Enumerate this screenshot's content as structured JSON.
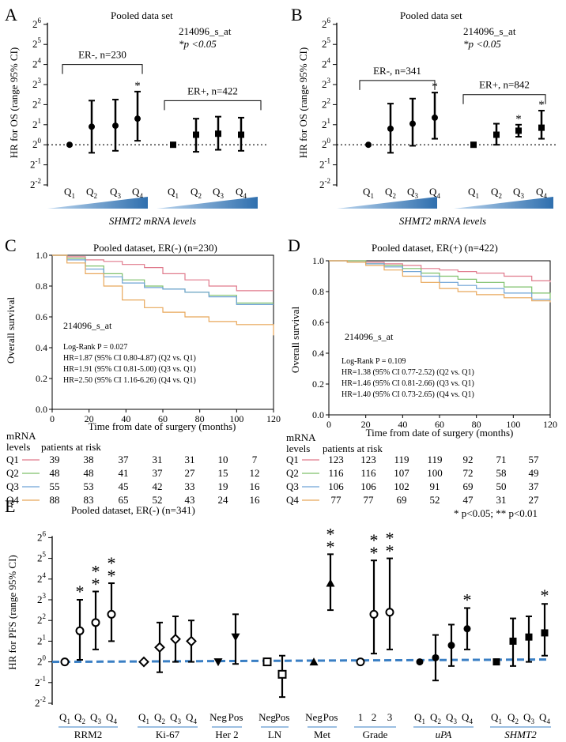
{
  "chart_data": [
    {
      "panel": "A",
      "type": "forest",
      "title": "Pooled data set",
      "probe": "214096_s_at",
      "pnote": "*p <0.05",
      "ylabel": "HR for OS (range 95% CI)",
      "xlabel": "SHMT2 mRNA levels",
      "ylim": [
        -2,
        6
      ],
      "yticks": [
        -2,
        -1,
        0,
        1,
        2,
        3,
        4,
        5,
        6
      ],
      "groups": [
        {
          "label": "ER-, n=230",
          "categories": [
            "Q1",
            "Q2",
            "Q3",
            "Q4"
          ],
          "marker": "circle",
          "points": [
            {
              "cat": "Q1",
              "value": 0,
              "lo": 0,
              "hi": 0,
              "sig": ""
            },
            {
              "cat": "Q2",
              "value": 0.9,
              "lo": -0.4,
              "hi": 2.2,
              "sig": ""
            },
            {
              "cat": "Q3",
              "value": 0.95,
              "lo": -0.3,
              "hi": 2.25,
              "sig": ""
            },
            {
              "cat": "Q4",
              "value": 1.3,
              "lo": 0.2,
              "hi": 2.65,
              "sig": "*"
            }
          ]
        },
        {
          "label": "ER+, n=422",
          "categories": [
            "Q1",
            "Q2",
            "Q3",
            "Q4"
          ],
          "marker": "square",
          "points": [
            {
              "cat": "Q1",
              "value": 0,
              "lo": 0,
              "hi": 0,
              "sig": ""
            },
            {
              "cat": "Q2",
              "value": 0.5,
              "lo": -0.35,
              "hi": 1.3,
              "sig": ""
            },
            {
              "cat": "Q3",
              "value": 0.55,
              "lo": -0.25,
              "hi": 1.4,
              "sig": ""
            },
            {
              "cat": "Q4",
              "value": 0.5,
              "lo": -0.3,
              "hi": 1.35,
              "sig": ""
            }
          ]
        }
      ]
    },
    {
      "panel": "B",
      "type": "forest",
      "title": "Pooled data set",
      "probe": "214096_s_at",
      "pnote": "*p <0.05",
      "ylabel": "HR for OS (range 95% CI)",
      "xlabel": "SHMT2 mRNA levels",
      "ylim": [
        -2,
        6
      ],
      "yticks": [
        -2,
        -1,
        0,
        1,
        2,
        3,
        4,
        5,
        6
      ],
      "groups": [
        {
          "label": "ER-, n=341",
          "categories": [
            "Q1",
            "Q2",
            "Q3",
            "Q4"
          ],
          "marker": "circle",
          "points": [
            {
              "cat": "Q1",
              "value": 0,
              "lo": 0,
              "hi": 0,
              "sig": ""
            },
            {
              "cat": "Q2",
              "value": 0.8,
              "lo": -0.4,
              "hi": 2.05,
              "sig": ""
            },
            {
              "cat": "Q3",
              "value": 1.05,
              "lo": -0.05,
              "hi": 2.3,
              "sig": ""
            },
            {
              "cat": "Q4",
              "value": 1.35,
              "lo": 0.3,
              "hi": 2.6,
              "sig": "*"
            }
          ]
        },
        {
          "label": "ER+, n=842",
          "categories": [
            "Q1",
            "Q2",
            "Q3",
            "Q4"
          ],
          "marker": "square",
          "points": [
            {
              "cat": "Q1",
              "value": 0,
              "lo": 0,
              "hi": 0,
              "sig": ""
            },
            {
              "cat": "Q2",
              "value": 0.5,
              "lo": 0.0,
              "hi": 1.05,
              "sig": ""
            },
            {
              "cat": "Q3",
              "value": 0.7,
              "lo": 0.4,
              "hi": 1.0,
              "sig": "*"
            },
            {
              "cat": "Q4",
              "value": 0.85,
              "lo": 0.3,
              "hi": 1.7,
              "sig": "*"
            }
          ]
        }
      ]
    },
    {
      "panel": "C",
      "type": "line",
      "title": "Pooled dataset,  ER(-) (n=230)",
      "ylabel": "Overall survival",
      "xlabel": "Time from date of surgery (months)",
      "xlim": [
        0,
        120
      ],
      "ylim": [
        0,
        1.0
      ],
      "xticks": [
        0,
        20,
        40,
        60,
        80,
        100,
        120
      ],
      "yticks": [
        0.0,
        0.2,
        0.4,
        0.6,
        0.8,
        1.0
      ],
      "probe": "214096_s_at",
      "stats": [
        "Log-Rank  P = 0.027",
        "HR=1.87 (95% CI 0.80-4.87) (Q2 vs. Q1)",
        "HR=1.91 (95% CI 0.81-5.00) (Q3 vs. Q1)",
        "HR=2.50 (95% CI 1.16-6.26) (Q4 vs. Q1)"
      ],
      "series": [
        {
          "name": "Q1",
          "color": "#e07a8c",
          "x": [
            0,
            8,
            18,
            28,
            38,
            50,
            60,
            72,
            85,
            100,
            120
          ],
          "y": [
            1.0,
            0.99,
            0.97,
            0.96,
            0.94,
            0.92,
            0.88,
            0.84,
            0.8,
            0.77,
            0.77
          ]
        },
        {
          "name": "Q2",
          "color": "#7fc06b",
          "x": [
            0,
            8,
            18,
            28,
            38,
            50,
            60,
            72,
            85,
            100,
            120
          ],
          "y": [
            1.0,
            0.98,
            0.93,
            0.88,
            0.84,
            0.8,
            0.78,
            0.76,
            0.74,
            0.69,
            0.69
          ]
        },
        {
          "name": "Q3",
          "color": "#6fa3d6",
          "x": [
            0,
            8,
            18,
            28,
            38,
            50,
            60,
            72,
            85,
            100,
            120
          ],
          "y": [
            1.0,
            0.97,
            0.91,
            0.86,
            0.82,
            0.79,
            0.78,
            0.76,
            0.73,
            0.68,
            0.68
          ]
        },
        {
          "name": "Q4",
          "color": "#e8a75a",
          "x": [
            0,
            8,
            18,
            28,
            38,
            50,
            60,
            72,
            85,
            100,
            120
          ],
          "y": [
            1.0,
            0.95,
            0.88,
            0.8,
            0.71,
            0.66,
            0.63,
            0.6,
            0.57,
            0.55,
            0.48
          ]
        }
      ],
      "risk_table": {
        "header1": "mRNA",
        "header2": "levels",
        "header3": "patients at risk",
        "rows": [
          {
            "label": "Q1",
            "color": "#e07a8c",
            "values": [
              "39",
              "38",
              "37",
              "31",
              "31",
              "10",
              "7"
            ]
          },
          {
            "label": "Q2",
            "color": "#7fc06b",
            "values": [
              "48",
              "48",
              "41",
              "37",
              "27",
              "15",
              "12"
            ]
          },
          {
            "label": "Q3",
            "color": "#6fa3d6",
            "values": [
              "55",
              "53",
              "45",
              "42",
              "33",
              "19",
              "16"
            ]
          },
          {
            "label": "Q4",
            "color": "#e8a75a",
            "values": [
              "88",
              "83",
              "65",
              "52",
              "43",
              "24",
              "16"
            ]
          }
        ]
      }
    },
    {
      "panel": "D",
      "type": "line",
      "title": "Pooled dataset,  ER(+) (n=422)",
      "ylabel": "Overall survival",
      "xlabel": "Time from date of surgery (months)",
      "xlim": [
        0,
        120
      ],
      "ylim": [
        0,
        1.0
      ],
      "xticks": [
        0,
        20,
        40,
        60,
        80,
        100,
        120
      ],
      "yticks": [
        0.0,
        0.2,
        0.4,
        0.6,
        0.8,
        1.0
      ],
      "probe": "214096_s_at",
      "stats": [
        "Log-Rank  P = 0.109",
        "HR=1.38 (95% CI 0.77-2.52) (Q2 vs. Q1)",
        "HR=1.46 (95% CI 0.81-2.66) (Q3 vs. Q1)",
        "HR=1.40 (95% CI 0.73-2.65) (Q4 vs. Q1)"
      ],
      "series": [
        {
          "name": "Q1",
          "color": "#e07a8c",
          "x": [
            0,
            10,
            20,
            30,
            40,
            50,
            60,
            70,
            80,
            95,
            110,
            120
          ],
          "y": [
            1.0,
            1.0,
            0.99,
            0.98,
            0.97,
            0.95,
            0.94,
            0.93,
            0.92,
            0.9,
            0.87,
            0.86
          ]
        },
        {
          "name": "Q2",
          "color": "#7fc06b",
          "x": [
            0,
            10,
            20,
            30,
            40,
            50,
            60,
            70,
            80,
            95,
            110,
            120
          ],
          "y": [
            1.0,
            1.0,
            0.98,
            0.97,
            0.95,
            0.92,
            0.9,
            0.88,
            0.86,
            0.83,
            0.79,
            0.75
          ]
        },
        {
          "name": "Q3",
          "color": "#6fa3d6",
          "x": [
            0,
            10,
            20,
            30,
            40,
            50,
            60,
            70,
            80,
            95,
            110,
            120
          ],
          "y": [
            1.0,
            0.99,
            0.98,
            0.96,
            0.93,
            0.9,
            0.86,
            0.84,
            0.82,
            0.79,
            0.75,
            0.74
          ]
        },
        {
          "name": "Q4",
          "color": "#e8a75a",
          "x": [
            0,
            10,
            20,
            30,
            40,
            50,
            60,
            70,
            80,
            95,
            110,
            120
          ],
          "y": [
            1.0,
            0.99,
            0.97,
            0.94,
            0.9,
            0.86,
            0.82,
            0.8,
            0.78,
            0.76,
            0.74,
            0.73
          ]
        }
      ],
      "risk_table": {
        "header1": "mRNA",
        "header2": "levels",
        "header3": "patients at risk",
        "rows": [
          {
            "label": "Q1",
            "color": "#e07a8c",
            "values": [
              "123",
              "123",
              "119",
              "119",
              "92",
              "71",
              "57"
            ]
          },
          {
            "label": "Q2",
            "color": "#7fc06b",
            "values": [
              "116",
              "116",
              "107",
              "100",
              "72",
              "58",
              "49"
            ]
          },
          {
            "label": "Q3",
            "color": "#6fa3d6",
            "values": [
              "106",
              "106",
              "102",
              "91",
              "69",
              "50",
              "37"
            ]
          },
          {
            "label": "Q4",
            "color": "#e8a75a",
            "values": [
              "77",
              "77",
              "69",
              "52",
              "47",
              "31",
              "27"
            ]
          }
        ]
      }
    },
    {
      "panel": "E",
      "type": "forest",
      "title": "Pooled dataset,  ER(-) (n=341)",
      "pnote": "* p<0.05; ** p<0.01",
      "ylabel": "HR for PFS (range 95% CI)",
      "ylim": [
        -2,
        6
      ],
      "yticks": [
        -2,
        -1,
        0,
        1,
        2,
        3,
        4,
        5,
        6
      ],
      "groups": [
        {
          "label": "RRM2",
          "italic": false,
          "categories": [
            "Q1",
            "Q2",
            "Q3",
            "Q4"
          ],
          "marker": "circle-open",
          "points": [
            {
              "value": 0,
              "lo": 0,
              "hi": 0,
              "sig": ""
            },
            {
              "value": 1.5,
              "lo": 0.1,
              "hi": 3.0,
              "sig": "*"
            },
            {
              "value": 1.9,
              "lo": 0.6,
              "hi": 3.4,
              "sig": "**"
            },
            {
              "value": 2.3,
              "lo": 1.0,
              "hi": 3.8,
              "sig": "**"
            }
          ]
        },
        {
          "label": "Ki-67",
          "italic": false,
          "categories": [
            "Q1",
            "Q2",
            "Q3",
            "Q4"
          ],
          "marker": "diamond-open",
          "points": [
            {
              "value": 0,
              "lo": 0,
              "hi": 0,
              "sig": ""
            },
            {
              "value": 0.7,
              "lo": -0.5,
              "hi": 1.9,
              "sig": ""
            },
            {
              "value": 1.1,
              "lo": 0.0,
              "hi": 2.2,
              "sig": ""
            },
            {
              "value": 1.0,
              "lo": 0.0,
              "hi": 2.0,
              "sig": ""
            }
          ]
        },
        {
          "label": "Her 2",
          "italic": false,
          "categories": [
            "Neg",
            "Pos"
          ],
          "marker": "triangle-down",
          "points": [
            {
              "value": 0,
              "lo": 0,
              "hi": 0,
              "sig": ""
            },
            {
              "value": 1.2,
              "lo": -0.1,
              "hi": 2.3,
              "sig": ""
            }
          ]
        },
        {
          "label": "LN",
          "italic": false,
          "categories": [
            "Neg",
            "Pos"
          ],
          "marker": "square-open",
          "points": [
            {
              "value": 0,
              "lo": 0,
              "hi": 0,
              "sig": ""
            },
            {
              "value": -0.6,
              "lo": -1.7,
              "hi": 0.3,
              "sig": ""
            }
          ]
        },
        {
          "label": "Met",
          "italic": false,
          "categories": [
            "Neg",
            "Pos"
          ],
          "marker": "triangle-up",
          "points": [
            {
              "value": 0,
              "lo": 0,
              "hi": 0,
              "sig": ""
            },
            {
              "value": 3.8,
              "lo": 2.5,
              "hi": 5.2,
              "sig": "**"
            }
          ]
        },
        {
          "label": "Grade",
          "italic": false,
          "categories": [
            "1",
            "2",
            "3"
          ],
          "marker": "circle-open",
          "points": [
            {
              "value": 0,
              "lo": 0,
              "hi": 0,
              "sig": ""
            },
            {
              "value": 2.3,
              "lo": 0.4,
              "hi": 4.9,
              "sig": "**"
            },
            {
              "value": 2.4,
              "lo": 0.6,
              "hi": 5.0,
              "sig": "**"
            }
          ]
        },
        {
          "label": "uPA",
          "italic": true,
          "categories": [
            "Q1",
            "Q2",
            "Q3",
            "Q4"
          ],
          "marker": "circle",
          "points": [
            {
              "value": 0,
              "lo": 0,
              "hi": 0,
              "sig": ""
            },
            {
              "value": 0.2,
              "lo": -0.9,
              "hi": 1.3,
              "sig": ""
            },
            {
              "value": 0.8,
              "lo": -0.2,
              "hi": 1.8,
              "sig": ""
            },
            {
              "value": 1.6,
              "lo": 0.6,
              "hi": 2.6,
              "sig": "*"
            }
          ]
        },
        {
          "label": "SHMT2",
          "italic": true,
          "categories": [
            "Q1",
            "Q2",
            "Q3",
            "Q4"
          ],
          "marker": "square",
          "points": [
            {
              "value": 0,
              "lo": 0,
              "hi": 0,
              "sig": ""
            },
            {
              "value": 1.0,
              "lo": -0.2,
              "hi": 2.1,
              "sig": ""
            },
            {
              "value": 1.2,
              "lo": 0.0,
              "hi": 2.2,
              "sig": ""
            },
            {
              "value": 1.4,
              "lo": 0.3,
              "hi": 2.8,
              "sig": "*"
            }
          ]
        }
      ]
    }
  ]
}
